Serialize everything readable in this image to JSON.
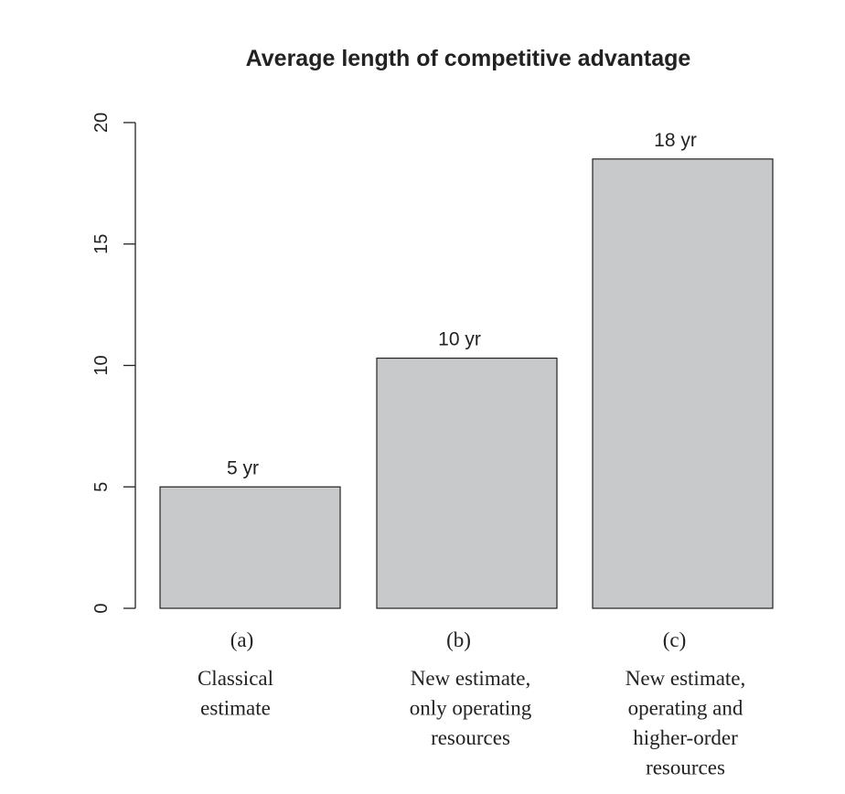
{
  "chart_data": {
    "type": "bar",
    "title": "Average length of competitive advantage",
    "xlabel": "",
    "ylabel": "",
    "ylim": [
      0,
      20
    ],
    "yticks": [
      0,
      5,
      10,
      15,
      20
    ],
    "categories": [
      "(a)",
      "(b)",
      "(c)"
    ],
    "category_descriptions": [
      [
        "Classical",
        "estimate"
      ],
      [
        "New estimate,",
        "only operating",
        "resources"
      ],
      [
        "New estimate,",
        "operating and",
        "higher-order",
        "resources"
      ]
    ],
    "values": [
      5.0,
      10.3,
      18.5
    ],
    "data_labels": [
      "5 yr",
      "10 yr",
      "18 yr"
    ],
    "bar_color": "#c8c9cb",
    "grid": false,
    "legend": "none"
  }
}
